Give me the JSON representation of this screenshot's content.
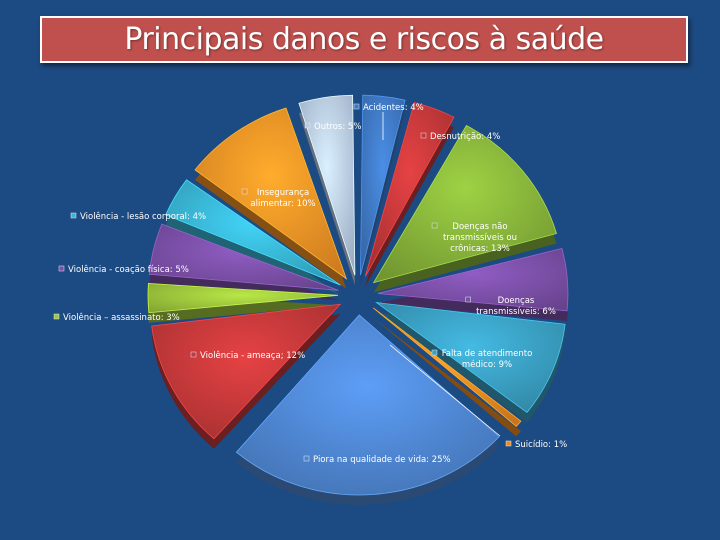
{
  "title": "Principais danos e riscos à saúde",
  "chart_data": {
    "type": "pie",
    "style": "exploded 3D pie",
    "legend": "none (data labels beside slices)",
    "slices": [
      {
        "key": "acidentes",
        "lines": [
          "Acidentes: 4%"
        ],
        "value": 4,
        "color": "#3f78c2"
      },
      {
        "key": "desnutricao",
        "lines": [
          "Desnutrição: 4%"
        ],
        "value": 4,
        "color": "#c3383a"
      },
      {
        "key": "doencas-nao-transmissiveis",
        "lines": [
          "Doenças não",
          "transmissíveis ou",
          "crônicas: 13%"
        ],
        "value": 13,
        "color": "#86b23a"
      },
      {
        "key": "doencas-transmissiveis",
        "lines": [
          "Doenças",
          "transmissíveis: 6%"
        ],
        "value": 6,
        "color": "#7a4fa6"
      },
      {
        "key": "falta-atendimento",
        "lines": [
          "Falta de atendimento",
          "médico: 9%"
        ],
        "value": 9,
        "color": "#3a9ec0"
      },
      {
        "key": "suicidio",
        "lines": [
          "Suicídio: 1%"
        ],
        "value": 1,
        "color": "#ee8a22"
      },
      {
        "key": "piora-qualidade",
        "lines": [
          "Piora na qualidade de vida: 25%"
        ],
        "value": 25,
        "color": "#4f86d1"
      },
      {
        "key": "violencia-ameaca",
        "lines": [
          "Violência - ameaça; 12%"
        ],
        "value": 12,
        "color": "#c3383a"
      },
      {
        "key": "violencia-assassinato",
        "lines": [
          "Violência – assassinato:  3%"
        ],
        "value": 3,
        "color": "#9cc43c"
      },
      {
        "key": "violencia-coacao",
        "lines": [
          "Violência - coação física: 5%"
        ],
        "value": 5,
        "color": "#7a4fa6"
      },
      {
        "key": "violencia-lesao",
        "lines": [
          "Violência - lesão corporal: 4%"
        ],
        "value": 4,
        "color": "#38b4d2"
      },
      {
        "key": "inseguranca-alimentar",
        "lines": [
          "Insegurança",
          "alimentar: 10%"
        ],
        "value": 10,
        "color": "#f39226"
      },
      {
        "key": "outros",
        "lines": [
          "Outros: 5%"
        ],
        "value": 5,
        "color": "#b9cbe8"
      }
    ]
  }
}
